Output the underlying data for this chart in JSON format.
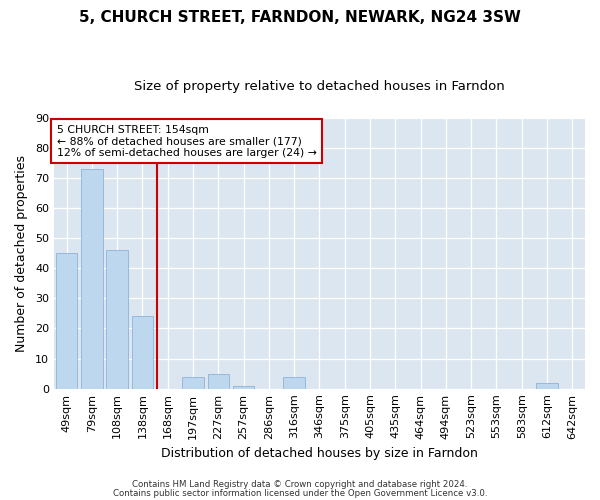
{
  "title": "5, CHURCH STREET, FARNDON, NEWARK, NG24 3SW",
  "subtitle": "Size of property relative to detached houses in Farndon",
  "xlabel": "Distribution of detached houses by size in Farndon",
  "ylabel": "Number of detached properties",
  "bar_labels": [
    "49sqm",
    "79sqm",
    "108sqm",
    "138sqm",
    "168sqm",
    "197sqm",
    "227sqm",
    "257sqm",
    "286sqm",
    "316sqm",
    "346sqm",
    "375sqm",
    "405sqm",
    "435sqm",
    "464sqm",
    "494sqm",
    "523sqm",
    "553sqm",
    "583sqm",
    "612sqm",
    "642sqm"
  ],
  "bar_values": [
    45,
    73,
    46,
    24,
    0,
    4,
    5,
    1,
    0,
    4,
    0,
    0,
    0,
    0,
    0,
    0,
    0,
    0,
    0,
    2,
    0
  ],
  "bar_color": "#bdd7ee",
  "bar_edge_color": "#8db4d9",
  "background_color": "#dce6f1",
  "grid_color": "#ffffff",
  "vline_color": "#cc0000",
  "annotation_box_text": "5 CHURCH STREET: 154sqm\n← 88% of detached houses are smaller (177)\n12% of semi-detached houses are larger (24) →",
  "ylim": [
    0,
    90
  ],
  "yticks": [
    0,
    10,
    20,
    30,
    40,
    50,
    60,
    70,
    80,
    90
  ],
  "footer_line1": "Contains HM Land Registry data © Crown copyright and database right 2024.",
  "footer_line2": "Contains public sector information licensed under the Open Government Licence v3.0.",
  "title_fontsize": 11,
  "subtitle_fontsize": 9.5,
  "fig_bg": "#ffffff"
}
